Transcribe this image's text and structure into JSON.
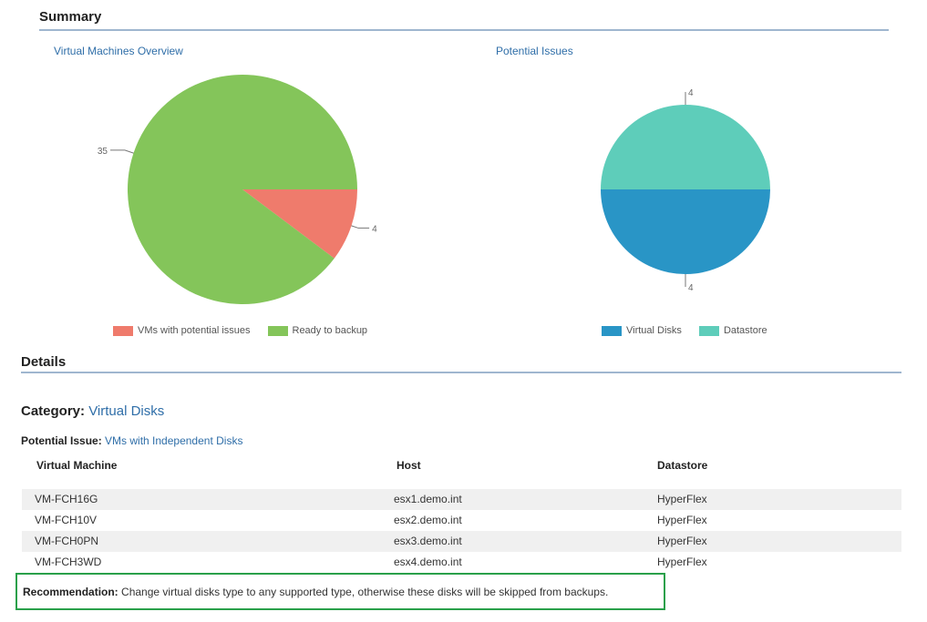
{
  "summary": {
    "heading": "Summary",
    "vm_chart_title": "Virtual Machines Overview",
    "issues_chart_title": "Potential Issues"
  },
  "colors": {
    "potential_issues": "#ef7b6c",
    "ready_to_backup": "#84c55a",
    "virtual_disks": "#2995c6",
    "datastore": "#5ecdba",
    "link": "#2f6ea8",
    "recommendation_border": "#2aa04a"
  },
  "chart_data": [
    {
      "type": "pie",
      "title": "Virtual Machines Overview",
      "labels": [
        "VMs with potential issues",
        "Ready to backup"
      ],
      "values": [
        4,
        35
      ],
      "colors": [
        "#ef7b6c",
        "#84c55a"
      ],
      "legend": "bottom"
    },
    {
      "type": "pie",
      "title": "Potential Issues",
      "labels": [
        "Virtual Disks",
        "Datastore"
      ],
      "values": [
        4,
        4
      ],
      "colors": [
        "#2995c6",
        "#5ecdba"
      ],
      "legend": "bottom"
    }
  ],
  "details": {
    "heading": "Details",
    "category_label": "Category:",
    "category_value": "Virtual Disks",
    "issue_label": "Potential Issue:",
    "issue_value": "VMs with Independent Disks",
    "columns": [
      "Virtual Machine",
      "Host",
      "Datastore"
    ],
    "rows": [
      [
        "VM-FCH16G",
        "esx1.demo.int",
        "HyperFlex"
      ],
      [
        "VM-FCH10V",
        "esx2.demo.int",
        "HyperFlex"
      ],
      [
        "VM-FCH0PN",
        "esx3.demo.int",
        "HyperFlex"
      ],
      [
        "VM-FCH3WD",
        "esx4.demo.int",
        "HyperFlex"
      ]
    ],
    "recommendation_label": "Recommendation:",
    "recommendation_text": "Change virtual disks type to any supported type, otherwise these disks will be skipped from backups."
  }
}
